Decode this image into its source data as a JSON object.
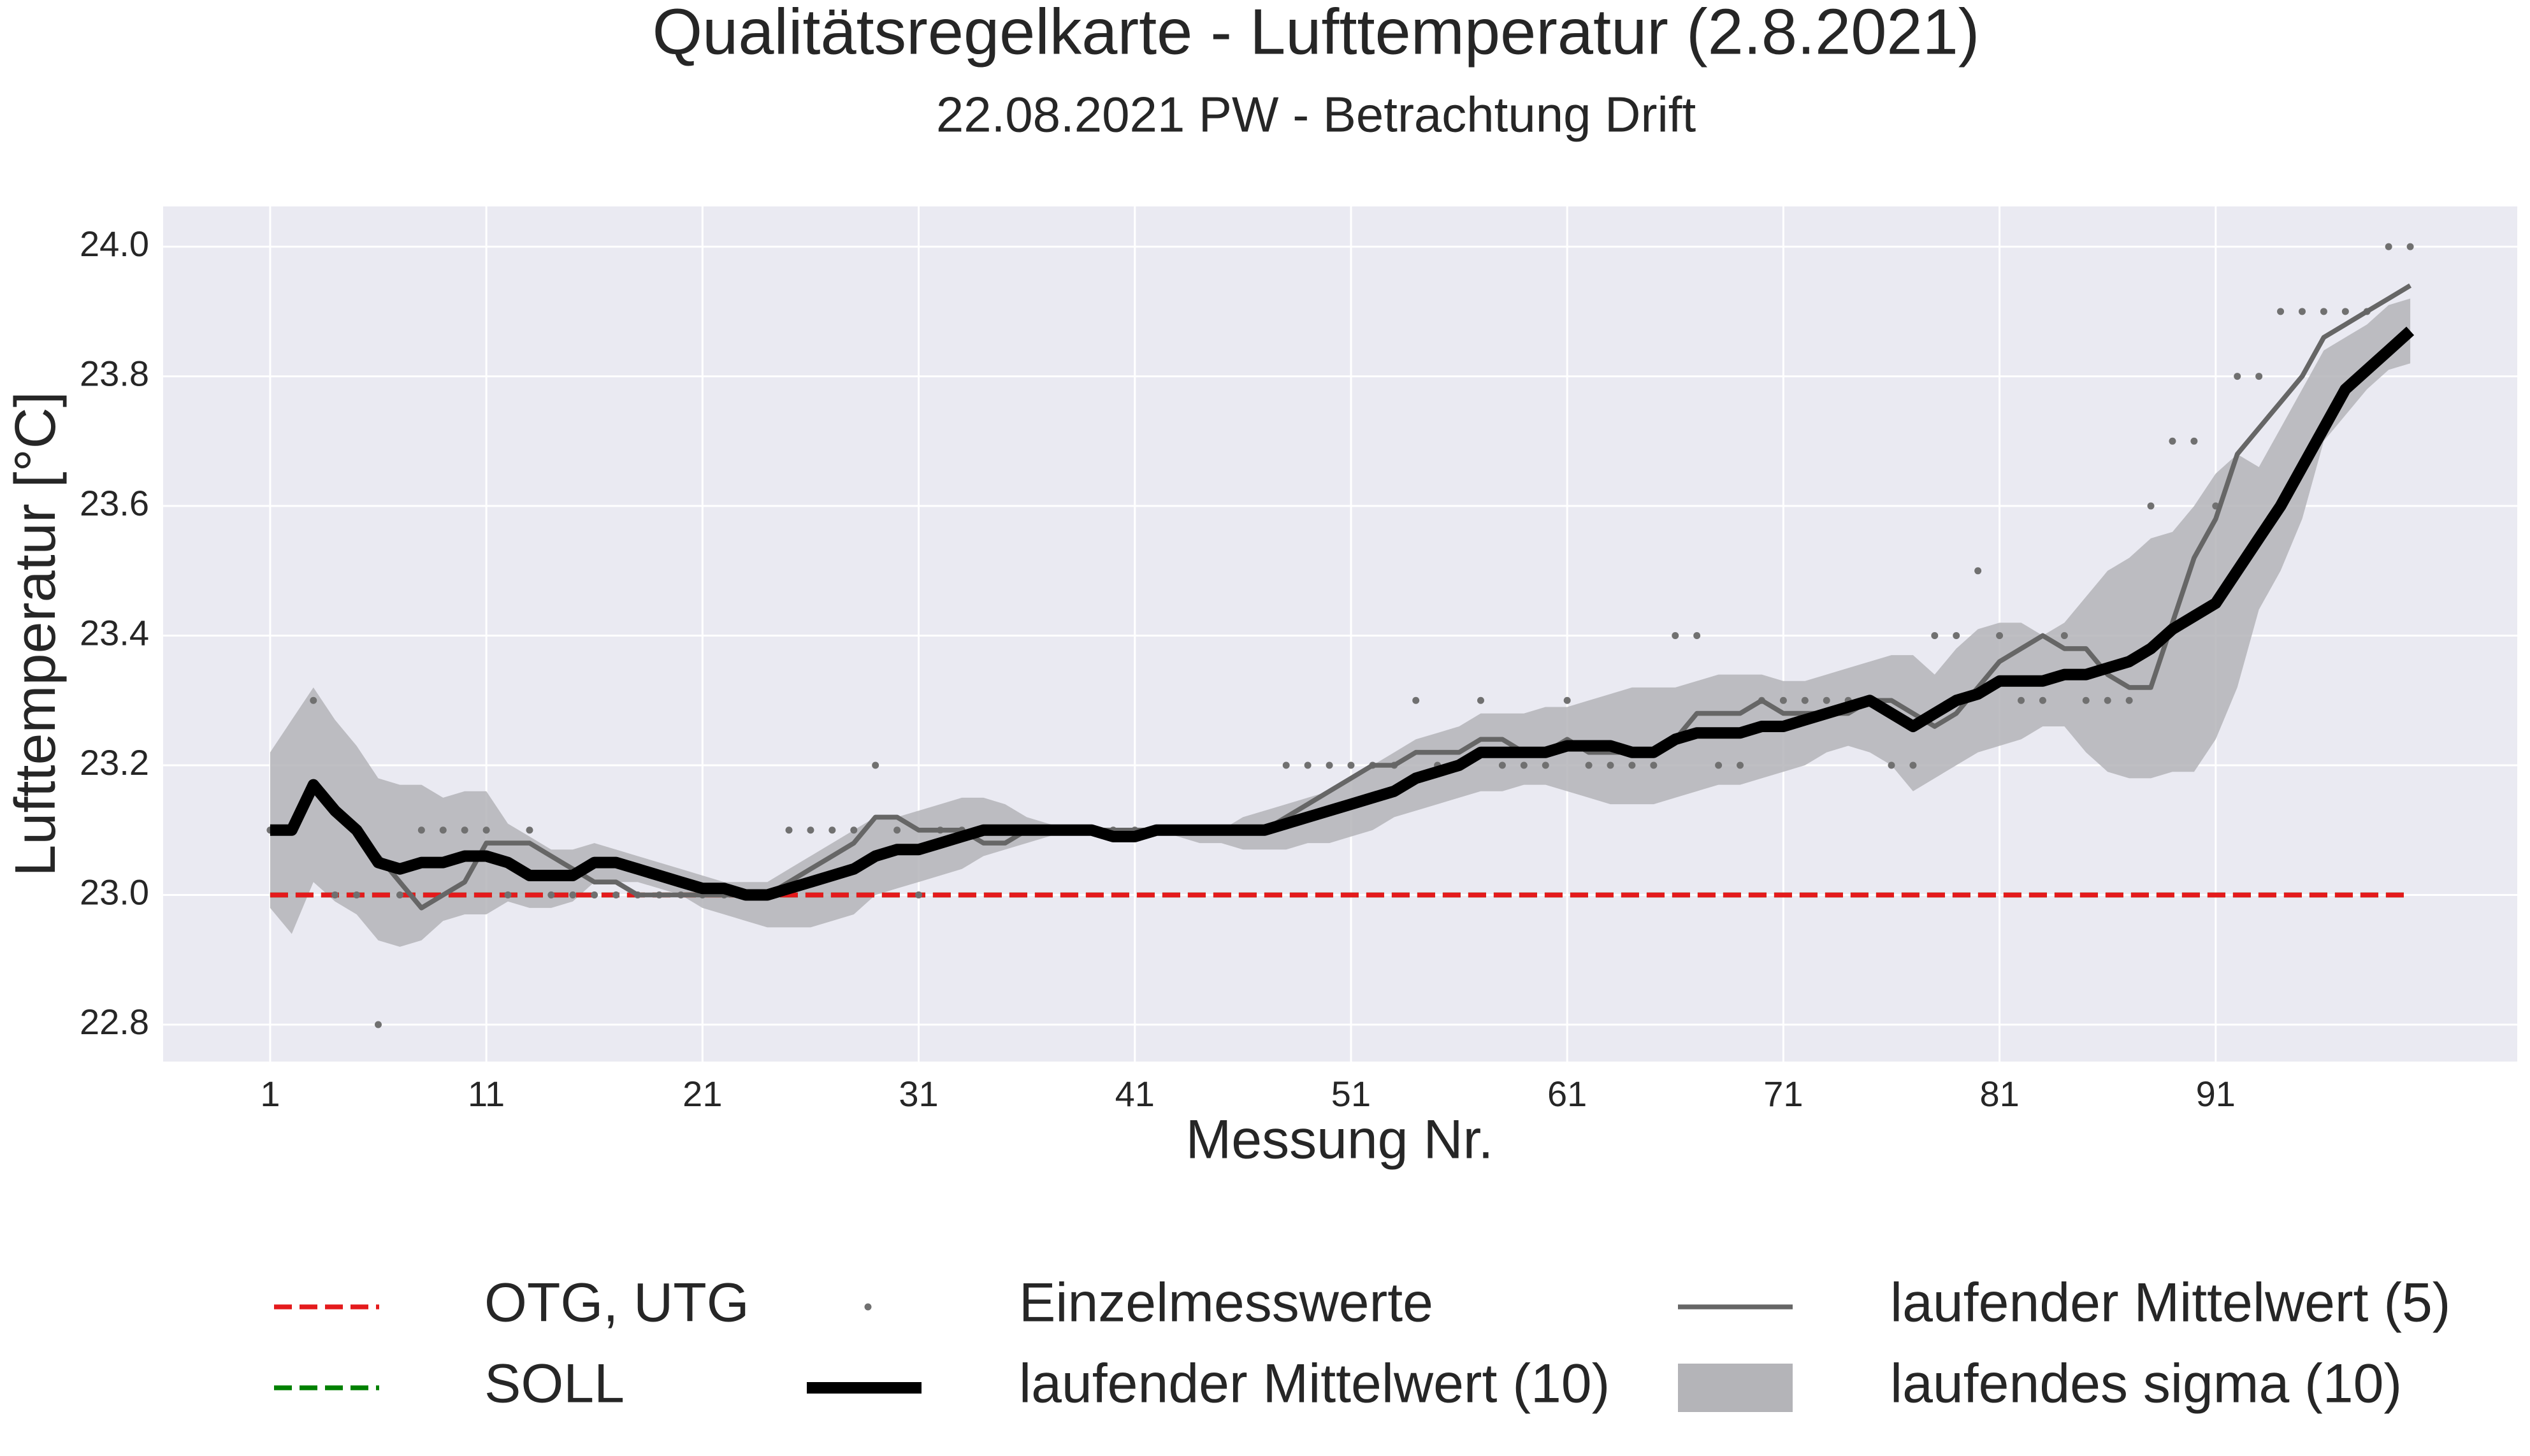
{
  "chart_data": {
    "type": "line",
    "title": "Qualitätsregelkarte - Lufttemperatur (2.8.2021)",
    "subtitle": "22.08.2021 PW - Betrachtung Drift",
    "xlabel": "Messung Nr.",
    "ylabel": "Lufttemperatur [°C]",
    "xlim": [
      -3.95,
      104.95
    ],
    "ylim": [
      22.743,
      24.062
    ],
    "xticks": [
      1,
      11,
      21,
      31,
      41,
      51,
      61,
      71,
      81,
      91
    ],
    "yticks": [
      22.8,
      {
        "value": 23.0,
        "label": "23.0"
      },
      23.2,
      23.4,
      23.6,
      23.8,
      {
        "value": 24.0,
        "label": "24.0"
      }
    ],
    "grid": true,
    "x": [
      1,
      2,
      3,
      4,
      5,
      6,
      7,
      8,
      9,
      10,
      11,
      12,
      13,
      14,
      15,
      16,
      17,
      18,
      19,
      20,
      21,
      22,
      23,
      24,
      25,
      26,
      27,
      28,
      29,
      30,
      31,
      32,
      33,
      34,
      35,
      36,
      37,
      38,
      39,
      40,
      41,
      42,
      43,
      44,
      45,
      46,
      47,
      48,
      49,
      50,
      51,
      52,
      53,
      54,
      55,
      56,
      57,
      58,
      59,
      60,
      61,
      62,
      63,
      64,
      65,
      66,
      67,
      68,
      69,
      70,
      71,
      72,
      73,
      74,
      75,
      76,
      77,
      78,
      79,
      80,
      81,
      82,
      83,
      84,
      85,
      86,
      87,
      88,
      89,
      90,
      91,
      92,
      93,
      94,
      95,
      96,
      97,
      98,
      99,
      100
    ],
    "reference_lines": [
      {
        "name": "OTG, UTG",
        "color": "#e41a1c",
        "value": 23.0
      },
      {
        "name": "SOLL",
        "color": "#008000",
        "value": 23.0
      }
    ],
    "series": [
      {
        "name": "Einzelmesswerte",
        "color": "#707070",
        "style": "dots",
        "values": [
          23.1,
          23.1,
          23.3,
          23.0,
          23.0,
          22.8,
          23.0,
          23.1,
          23.1,
          23.1,
          23.1,
          23.0,
          23.1,
          23.0,
          23.0,
          23.0,
          23.0,
          23.0,
          23.0,
          23.0,
          23.0,
          23.0,
          23.0,
          23.0,
          23.1,
          23.1,
          23.1,
          23.1,
          23.2,
          23.1,
          23.0,
          23.1,
          23.1,
          23.1,
          23.1,
          23.1,
          23.1,
          23.1,
          23.1,
          23.1,
          23.1,
          23.1,
          23.1,
          23.1,
          23.1,
          23.1,
          23.1,
          23.2,
          23.2,
          23.2,
          23.2,
          23.2,
          23.2,
          23.3,
          23.2,
          23.2,
          23.3,
          23.2,
          23.2,
          23.2,
          23.3,
          23.2,
          23.2,
          23.2,
          23.2,
          23.4,
          23.4,
          23.2,
          23.2,
          23.3,
          23.3,
          23.3,
          23.3,
          23.3,
          23.3,
          23.2,
          23.2,
          23.4,
          23.4,
          23.5,
          23.4,
          23.3,
          23.3,
          23.4,
          23.3,
          23.3,
          23.3,
          23.6,
          23.7,
          23.7,
          23.6,
          23.8,
          23.8,
          23.9,
          23.9,
          23.9,
          23.9,
          23.9,
          24.0,
          24.0
        ]
      },
      {
        "name": "laufender Mittelwert (10)",
        "color": "#000000",
        "style": "thick",
        "values": [
          23.1,
          23.1,
          23.17,
          23.13,
          23.1,
          23.05,
          23.04,
          23.05,
          23.05,
          23.06,
          23.06,
          23.05,
          23.03,
          23.03,
          23.03,
          23.05,
          23.05,
          23.04,
          23.03,
          23.02,
          23.01,
          23.01,
          23.0,
          23.0,
          23.01,
          23.02,
          23.03,
          23.04,
          23.06,
          23.07,
          23.07,
          23.08,
          23.09,
          23.1,
          23.1,
          23.1,
          23.1,
          23.1,
          23.1,
          23.09,
          23.09,
          23.1,
          23.1,
          23.1,
          23.1,
          23.1,
          23.1,
          23.11,
          23.12,
          23.13,
          23.14,
          23.15,
          23.16,
          23.18,
          23.19,
          23.2,
          23.22,
          23.22,
          23.22,
          23.22,
          23.23,
          23.23,
          23.23,
          23.22,
          23.22,
          23.24,
          23.25,
          23.25,
          23.25,
          23.26,
          23.26,
          23.27,
          23.28,
          23.29,
          23.3,
          23.28,
          23.26,
          23.28,
          23.3,
          23.31,
          23.33,
          23.33,
          23.33,
          23.34,
          23.34,
          23.35,
          23.36,
          23.38,
          23.41,
          23.43,
          23.45,
          23.5,
          23.55,
          23.6,
          23.66,
          23.72,
          23.78,
          23.81,
          23.84,
          23.87
        ]
      },
      {
        "name": "laufender Mittelwert (5)",
        "color": "#666666",
        "style": "thin",
        "values": [
          23.1,
          23.1,
          23.17,
          23.13,
          23.1,
          23.06,
          23.02,
          22.98,
          23.0,
          23.02,
          23.08,
          23.08,
          23.08,
          23.06,
          23.04,
          23.02,
          23.02,
          23.0,
          23.0,
          23.0,
          23.0,
          23.0,
          23.0,
          23.0,
          23.02,
          23.04,
          23.06,
          23.08,
          23.12,
          23.12,
          23.1,
          23.1,
          23.1,
          23.08,
          23.08,
          23.1,
          23.1,
          23.1,
          23.1,
          23.1,
          23.1,
          23.1,
          23.1,
          23.1,
          23.1,
          23.1,
          23.1,
          23.12,
          23.14,
          23.16,
          23.18,
          23.2,
          23.2,
          23.22,
          23.22,
          23.22,
          23.24,
          23.24,
          23.22,
          23.22,
          23.24,
          23.22,
          23.22,
          23.22,
          23.22,
          23.24,
          23.28,
          23.28,
          23.28,
          23.3,
          23.28,
          23.28,
          23.28,
          23.28,
          23.3,
          23.3,
          23.28,
          23.26,
          23.28,
          23.32,
          23.36,
          23.38,
          23.4,
          23.38,
          23.38,
          23.34,
          23.32,
          23.32,
          23.42,
          23.52,
          23.58,
          23.68,
          23.72,
          23.76,
          23.8,
          23.86,
          23.88,
          23.9,
          23.92,
          23.94
        ]
      }
    ],
    "band": {
      "name": "laufendes sigma (10)",
      "color": "#b4b4b8",
      "upper": [
        23.22,
        23.27,
        23.32,
        23.27,
        23.23,
        23.18,
        23.17,
        23.17,
        23.15,
        23.16,
        23.16,
        23.11,
        23.09,
        23.07,
        23.07,
        23.08,
        23.07,
        23.06,
        23.05,
        23.04,
        23.03,
        23.02,
        23.02,
        23.02,
        23.04,
        23.06,
        23.08,
        23.1,
        23.12,
        23.12,
        23.13,
        23.14,
        23.15,
        23.15,
        23.14,
        23.12,
        23.11,
        23.1,
        23.1,
        23.1,
        23.1,
        23.1,
        23.1,
        23.1,
        23.1,
        23.12,
        23.13,
        23.14,
        23.15,
        23.16,
        23.18,
        23.2,
        23.22,
        23.24,
        23.25,
        23.26,
        23.28,
        23.28,
        23.28,
        23.29,
        23.29,
        23.3,
        23.31,
        23.32,
        23.32,
        23.32,
        23.33,
        23.34,
        23.34,
        23.34,
        23.33,
        23.33,
        23.34,
        23.35,
        23.36,
        23.37,
        23.37,
        23.34,
        23.38,
        23.41,
        23.42,
        23.42,
        23.4,
        23.42,
        23.46,
        23.5,
        23.52,
        23.55,
        23.56,
        23.6,
        23.65,
        23.68,
        23.66,
        23.72,
        23.78,
        23.84,
        23.86,
        23.88,
        23.91,
        23.92
      ],
      "lower": [
        22.98,
        22.94,
        23.02,
        22.99,
        22.97,
        22.93,
        22.92,
        22.93,
        22.96,
        22.97,
        22.97,
        22.99,
        22.98,
        22.98,
        22.99,
        23.02,
        23.02,
        23.02,
        23.01,
        23.0,
        22.98,
        22.97,
        22.96,
        22.95,
        22.95,
        22.95,
        22.96,
        22.97,
        23.0,
        23.01,
        23.02,
        23.03,
        23.04,
        23.06,
        23.07,
        23.08,
        23.09,
        23.1,
        23.1,
        23.1,
        23.1,
        23.1,
        23.09,
        23.08,
        23.08,
        23.07,
        23.07,
        23.07,
        23.08,
        23.08,
        23.09,
        23.1,
        23.12,
        23.13,
        23.14,
        23.15,
        23.16,
        23.16,
        23.17,
        23.17,
        23.16,
        23.15,
        23.14,
        23.14,
        23.14,
        23.15,
        23.16,
        23.17,
        23.17,
        23.18,
        23.19,
        23.2,
        23.22,
        23.23,
        23.22,
        23.2,
        23.16,
        23.18,
        23.2,
        23.22,
        23.23,
        23.24,
        23.26,
        23.26,
        23.22,
        23.19,
        23.18,
        23.18,
        23.19,
        23.19,
        23.24,
        23.32,
        23.44,
        23.5,
        23.58,
        23.7,
        23.74,
        23.78,
        23.81,
        23.82
      ]
    }
  }
}
